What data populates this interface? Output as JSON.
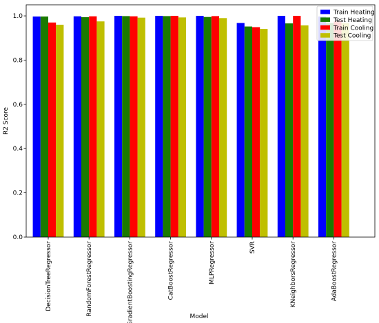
{
  "chart_data": {
    "type": "bar",
    "title": "",
    "xlabel": "Model",
    "ylabel": "R2 Score",
    "ylim": [
      0,
      1.05
    ],
    "yticks": [
      0.0,
      0.2,
      0.4,
      0.6,
      0.8,
      1.0
    ],
    "grid": false,
    "legend_position": "top-right",
    "categories": [
      "DecisionTreeRegressor",
      "RandomForestRegressor",
      "GradientBoostingRegressor",
      "CatBoostRegressor",
      "MLPRegressor",
      "SVR",
      "KNeighborsRegressor",
      "AdaBoostRegressor"
    ],
    "series": [
      {
        "name": "Train Heating",
        "color": "#0000ff",
        "values": [
          0.997,
          0.998,
          1.0,
          1.0,
          1.0,
          0.968,
          1.0,
          0.997
        ]
      },
      {
        "name": "Test Heating",
        "color": "#1a7a00",
        "values": [
          0.997,
          0.994,
          0.999,
          0.999,
          0.995,
          0.952,
          0.966,
          0.968
        ]
      },
      {
        "name": "Train Cooling",
        "color": "#ff0000",
        "values": [
          0.97,
          0.998,
          0.998,
          1.0,
          0.999,
          0.949,
          1.0,
          0.975
        ]
      },
      {
        "name": "Test Cooling",
        "color": "#bfbf00",
        "values": [
          0.96,
          0.975,
          0.992,
          0.993,
          0.99,
          0.941,
          0.957,
          0.968
        ]
      }
    ]
  }
}
